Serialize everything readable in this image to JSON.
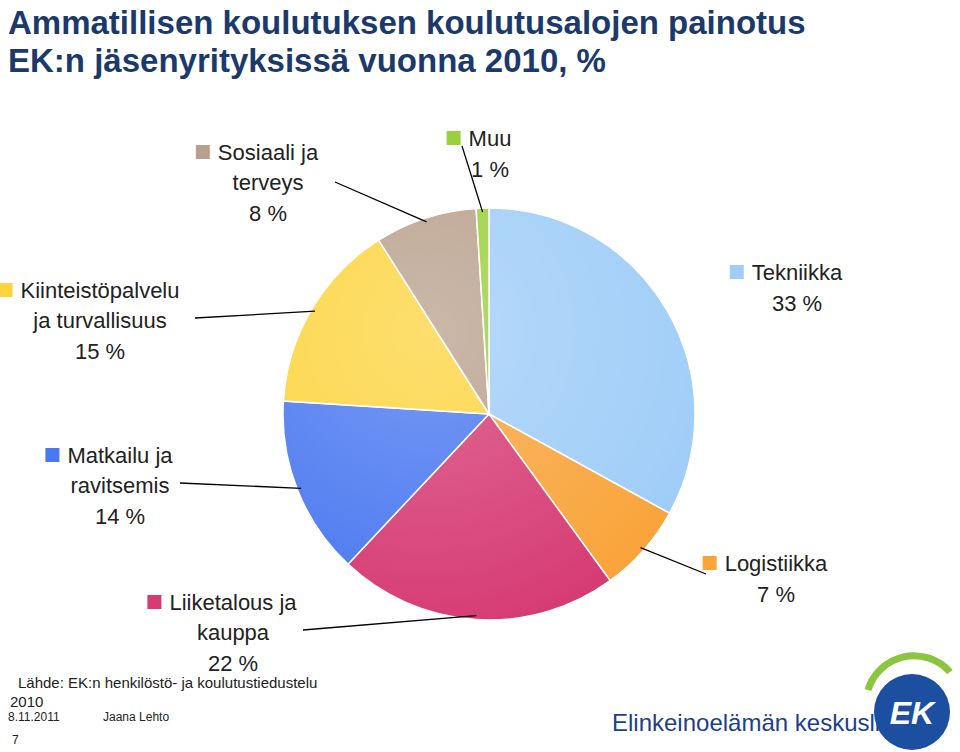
{
  "chart_data": {
    "type": "pie",
    "title": "Ammatillisen koulutuksen koulutusalojen painotus EK:n jäsenyrityksissä vuonna 2010, %",
    "categories": [
      "Tekniikka",
      "Logistiikka",
      "Liiketalous ja kauppa",
      "Matkailu ja ravitsemis",
      "Kiinteistöpalvelu ja turvallisuus",
      "Sosiaali ja terveys",
      "Muu"
    ],
    "values": [
      33,
      7,
      22,
      14,
      15,
      8,
      1
    ],
    "value_labels": [
      "33 %",
      "7 %",
      "22 %",
      "14 %",
      "15 %",
      "8 %",
      "1 %"
    ],
    "colors": [
      "#9fcdf8",
      "#f9a43a",
      "#d63b73",
      "#4a78f0",
      "#fdd43e",
      "#b9a08c",
      "#9ad03a"
    ],
    "data_labels": true
  },
  "footer": {
    "source": "Lähde: EK:n henkilöstö- ja koulutustiedustelu 2010",
    "date": "8.11.2011",
    "author": "Jaana Lehto",
    "page": "7",
    "organization": "Elinkeinoelämän keskusliitto",
    "logo": "EK"
  }
}
